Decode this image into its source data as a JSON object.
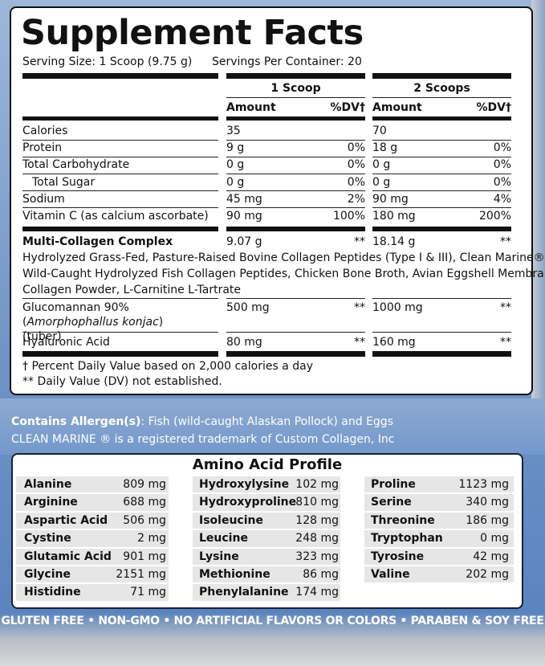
{
  "supplement_facts": {
    "title": "Supplement Facts",
    "serving_size": "Serving Size: 1 Scoop (9.75 g)",
    "servings_per_container": "Servings Per Container: 20",
    "column_groups": [
      "1 Scoop",
      "2 Scoops"
    ],
    "amount_header": "Amount",
    "dv_header": "%DV†",
    "rows": [
      {
        "name": "Calories",
        "amount_1": "35",
        "amount_2": "70"
      },
      {
        "name": "Protein",
        "amount_1": "9 g",
        "dv_1": "0%",
        "amount_2": "18 g",
        "dv_2": "0%"
      },
      {
        "name": "Total Carbohydrate",
        "amount_1": "0 g",
        "dv_1": "0%",
        "amount_2": "0 g",
        "dv_2": "0%"
      },
      {
        "name": "Total Sugar",
        "amount_1": "0 g",
        "dv_1": "0%",
        "amount_2": "0 g",
        "dv_2": "0%"
      },
      {
        "name": "Sodium",
        "amount_1": "45 mg",
        "dv_1": "2%",
        "amount_2": "90 mg",
        "dv_2": "4%"
      },
      {
        "name": "Vitamin C (as calcium ascorbate)",
        "amount_1": "90 mg",
        "dv_1": "100%",
        "amount_2": "180 mg",
        "dv_2": "200%"
      }
    ],
    "complex": {
      "name": "Multi-Collagen Complex",
      "amount_1": "9.07 g",
      "dv_1": "**",
      "amount_2": "18.14 g",
      "dv_2": "**",
      "description": [
        "Hydrolyzed Grass-Fed, Pasture-Raised Bovine Collagen Peptides (Type I & III), Clean Marine®",
        "Wild-Caught Hydrolyzed Fish Collagen Peptides, Chicken Bone Broth, Avian Eggshell Membrane",
        "Collagen Powder, L-Carnitine L-Tartrate"
      ]
    },
    "glucomannan": {
      "name_parts": [
        "Glucomannan 90% (",
        "Amorphophallus konjac",
        ") (tuber)"
      ],
      "amount_1": "500 mg",
      "dv_1": "**",
      "amount_2": "1000 mg",
      "dv_2": "**"
    },
    "hyaluronic": {
      "name": "Hyaluronic Acid",
      "amount_1": "80 mg",
      "dv_1": "**",
      "amount_2": "160 mg",
      "dv_2": "**"
    },
    "footnotes": [
      "† Percent Daily Value based on 2,000 calories a day",
      "** Daily Value (DV) not established."
    ]
  },
  "allergen": {
    "label": "Contains Allergen(s)",
    "text": ": Fish (wild-caught Alaskan Pollock) and Eggs"
  },
  "trademark": "CLEAN MARINE ® is a registered trademark of Custom Collagen, Inc",
  "amino_acid_profile": {
    "title": "Amino Acid Profile",
    "columns": [
      [
        {
          "name": "Alanine",
          "amount": "809 mg"
        },
        {
          "name": "Arginine",
          "amount": "688 mg"
        },
        {
          "name": "Aspartic Acid",
          "amount": "506 mg"
        },
        {
          "name": "Cystine",
          "amount": "2 mg"
        },
        {
          "name": "Glutamic Acid",
          "amount": "901 mg"
        },
        {
          "name": "Glycine",
          "amount": "2151 mg"
        },
        {
          "name": "Histidine",
          "amount": "71 mg"
        }
      ],
      [
        {
          "name": "Hydroxylysine",
          "amount": "102 mg"
        },
        {
          "name": "Hydroxyproline",
          "amount": "810 mg"
        },
        {
          "name": "Isoleucine",
          "amount": "128 mg"
        },
        {
          "name": "Leucine",
          "amount": "248 mg"
        },
        {
          "name": "Lysine",
          "amount": "323 mg"
        },
        {
          "name": "Methionine",
          "amount": "86 mg"
        },
        {
          "name": "Phenylalanine",
          "amount": "174 mg"
        }
      ],
      [
        {
          "name": "Proline",
          "amount": "1123 mg"
        },
        {
          "name": "Serine",
          "amount": "340 mg"
        },
        {
          "name": "Threonine",
          "amount": "186 mg"
        },
        {
          "name": "Tryptophan",
          "amount": "0 mg"
        },
        {
          "name": "Tyrosine",
          "amount": "42 mg"
        },
        {
          "name": "Valine",
          "amount": "202 mg"
        }
      ]
    ]
  },
  "banner": "GLUTEN FREE • NON-GMO • NO ARTIFICIAL FLAVORS OR COLORS • PARABEN & SOY FREE"
}
